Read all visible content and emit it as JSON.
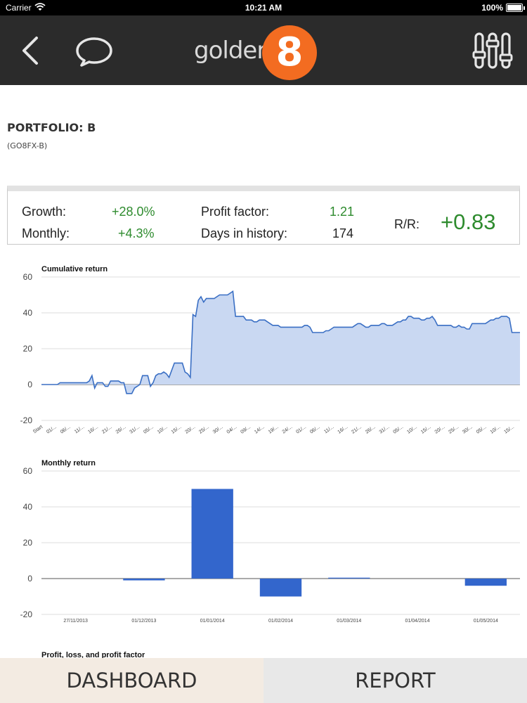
{
  "status_bar": {
    "carrier": "Carrier",
    "time": "10:21 AM",
    "battery": "100%"
  },
  "nav": {
    "back_icon": "chevron-left-icon",
    "chat_icon": "speech-bubble-icon",
    "settings_icon": "sliders-icon",
    "logo_text": "golden",
    "logo_number": "8"
  },
  "portfolio": {
    "title": "PORTFOLIO: B",
    "code": "(GO8FX-B)"
  },
  "stats": {
    "growth_label": "Growth:",
    "growth_value": "+28.0%",
    "monthly_label": "Monthly:",
    "monthly_value": "+4.3%",
    "profit_factor_label": "Profit factor:",
    "profit_factor_value": "1.21",
    "days_label": "Days in history:",
    "days_value": "174",
    "rr_label": "R/R:",
    "rr_value": "+0.83",
    "positive_color": "#2e8b2e"
  },
  "chart_data": [
    {
      "type": "area",
      "title": "Cumulative return",
      "ylim": [
        -20,
        60
      ],
      "yticks": [
        "60",
        "40",
        "20",
        "0",
        "-20"
      ],
      "x_tick_labels": [
        "Start",
        "01/...",
        "06/...",
        "11/...",
        "16/...",
        "21/...",
        "26/...",
        "31/...",
        "05/...",
        "10/...",
        "15/...",
        "20/...",
        "25/...",
        "30/...",
        "04/...",
        "09/...",
        "14/...",
        "19/...",
        "24/...",
        "01/...",
        "06/...",
        "11/...",
        "16/...",
        "21/...",
        "26/...",
        "31/...",
        "05/...",
        "10/...",
        "15/...",
        "20/...",
        "25/...",
        "30/...",
        "05/...",
        "10/...",
        "15/..."
      ],
      "values": [
        0,
        0,
        0,
        0,
        0,
        0,
        0,
        1,
        1,
        1,
        1,
        1,
        1,
        1,
        1,
        1,
        1,
        1,
        2,
        5,
        -2,
        1,
        1,
        1,
        -1,
        -1,
        2,
        2,
        2,
        2,
        1,
        1,
        -5,
        -5,
        -5,
        -2,
        -1,
        0,
        5,
        5,
        5,
        -1,
        1,
        5,
        6,
        6,
        7,
        6,
        4,
        8,
        12,
        12,
        12,
        12,
        7,
        6,
        4,
        39,
        38,
        47,
        49,
        46,
        48,
        48,
        48,
        48,
        49,
        50,
        50,
        50,
        50,
        51,
        52,
        38,
        38,
        38,
        38,
        36,
        36,
        36,
        35,
        35,
        36,
        36,
        36,
        35,
        34,
        33,
        33,
        33,
        32,
        32,
        32,
        32,
        32,
        32,
        32,
        32,
        32,
        33,
        33,
        32,
        29,
        29,
        29,
        29,
        29,
        30,
        30,
        31,
        32,
        32,
        32,
        32,
        32,
        32,
        32,
        32,
        33,
        34,
        34,
        33,
        32,
        32,
        33,
        33,
        33,
        33,
        34,
        34,
        33,
        33,
        33,
        34,
        35,
        35,
        36,
        36,
        38,
        38,
        37,
        37,
        37,
        36,
        36,
        37,
        37,
        38,
        36,
        33,
        33,
        33,
        33,
        33,
        33,
        32,
        32,
        33,
        32,
        32,
        31,
        31,
        34,
        34,
        34,
        34,
        34,
        34,
        35,
        36,
        36,
        37,
        37,
        38,
        38,
        38,
        37,
        29,
        29,
        29,
        29
      ],
      "line_color": "#3a6fc4",
      "fill_color": "#c9d8f2"
    },
    {
      "type": "bar",
      "title": "Monthly return",
      "ylim": [
        -20,
        60
      ],
      "yticks": [
        "60",
        "40",
        "20",
        "0",
        "-20"
      ],
      "categories": [
        "27/11/2013",
        "01/12/2013",
        "01/01/2014",
        "01/02/2014",
        "01/03/2014",
        "01/04/2014",
        "01/05/2014"
      ],
      "values": [
        0,
        -1,
        50,
        -10,
        0.5,
        0,
        -4
      ],
      "bar_color": "#3366cc"
    }
  ],
  "next_section_title": "Profit, loss, and profit factor",
  "tabs": {
    "dashboard": "DASHBOARD",
    "report": "REPORT"
  }
}
